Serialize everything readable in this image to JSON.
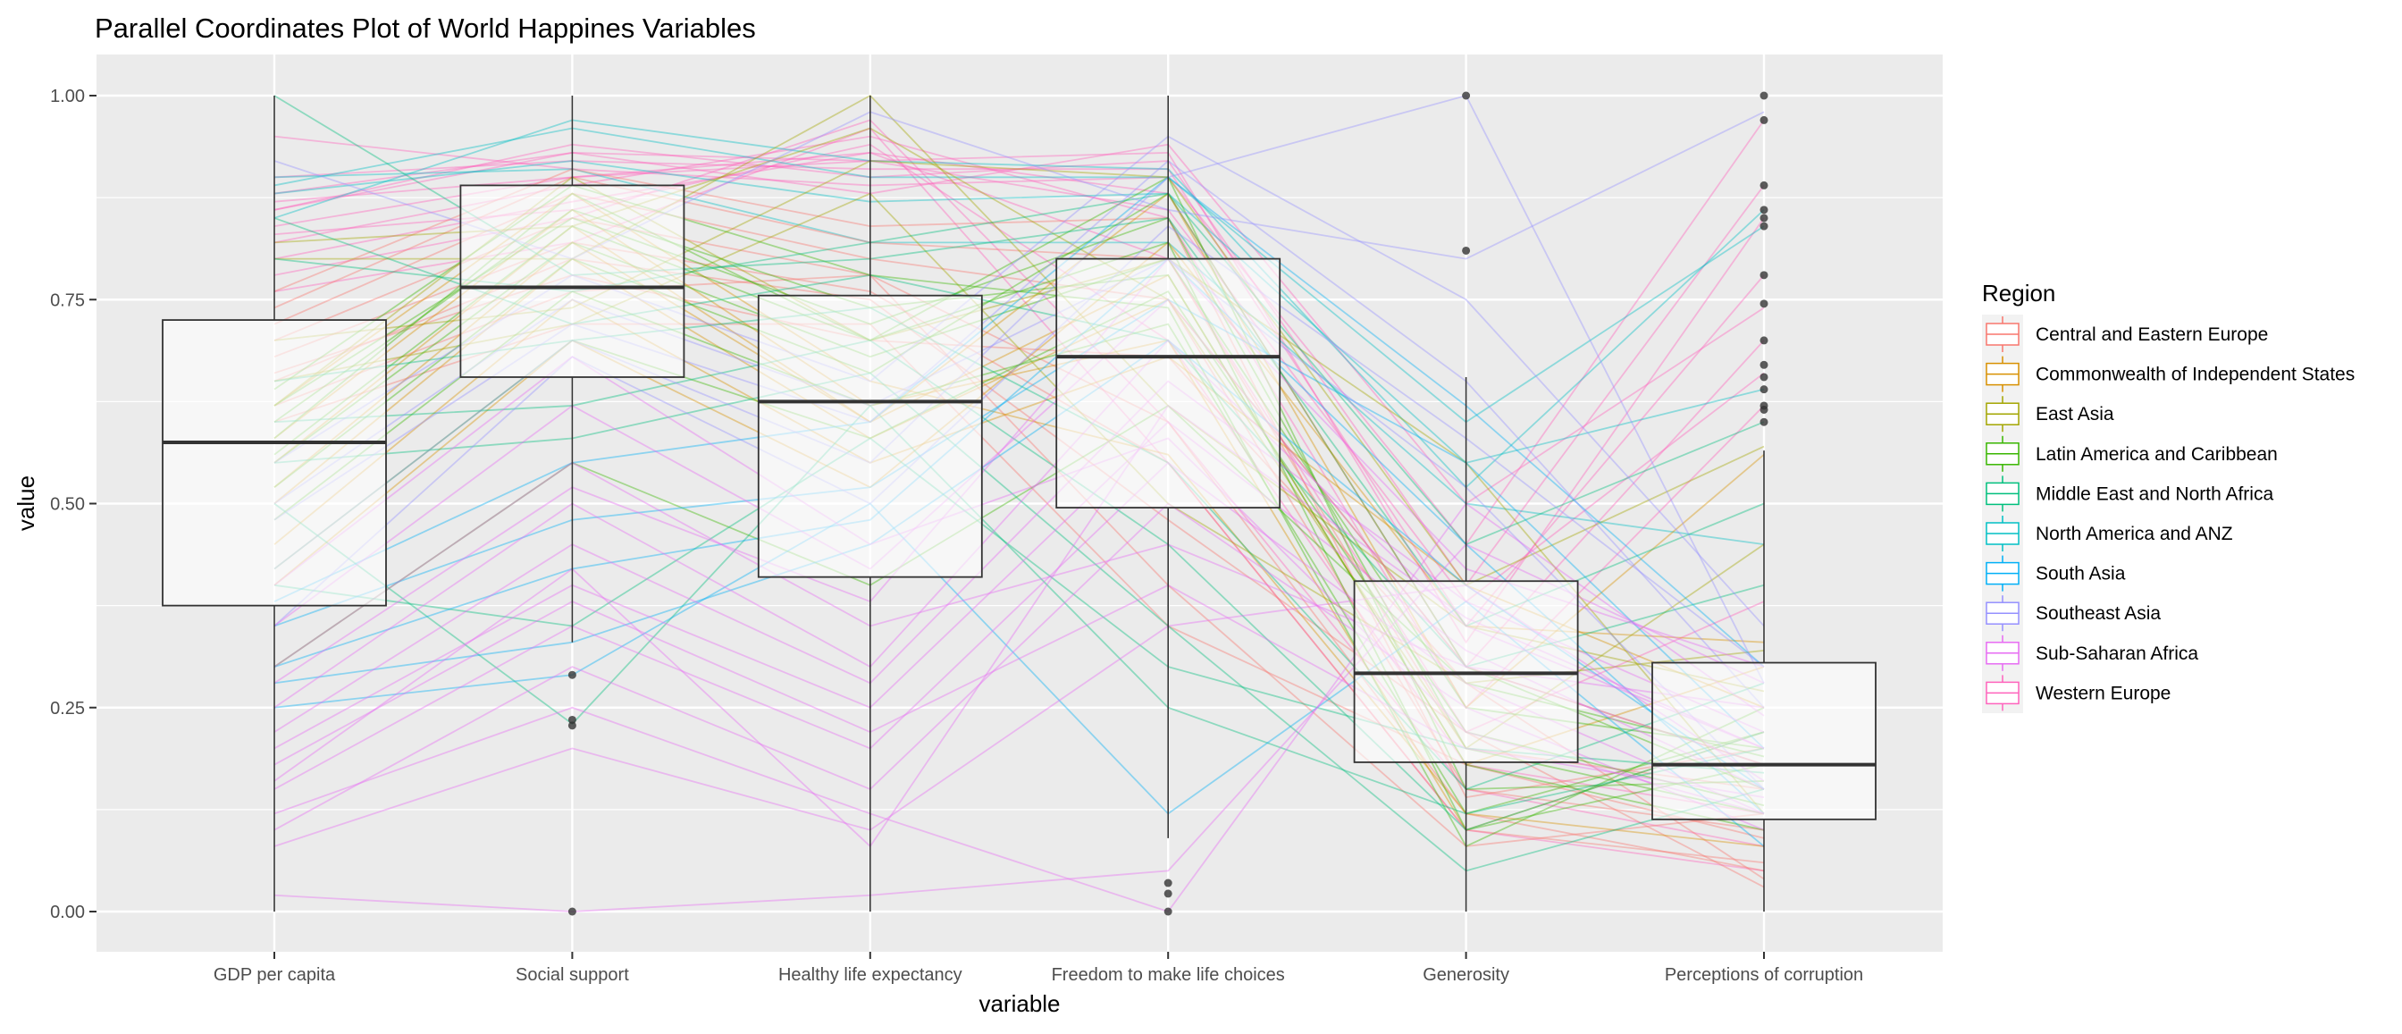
{
  "chart_data": {
    "type": "parallel-coordinates",
    "title": "Parallel Coordinates Plot of World Happines Variables",
    "xlabel": "variable",
    "ylabel": "value",
    "ylim": [
      0,
      1
    ],
    "yticks": [
      "0.00",
      "0.25",
      "0.50",
      "0.75",
      "1.00"
    ],
    "ytick_values": [
      0,
      0.25,
      0.5,
      0.75,
      1
    ],
    "categories": [
      "GDP per capita",
      "Social support",
      "Healthy life expectancy",
      "Freedom to make life choices",
      "Generosity",
      "Perceptions of corruption"
    ],
    "legend": {
      "title": "Region",
      "placement": "right",
      "entries": [
        {
          "label": "Central and Eastern Europe",
          "color": "#F8766D"
        },
        {
          "label": "Commonwealth of Independent States",
          "color": "#D89000"
        },
        {
          "label": "East Asia",
          "color": "#A3A500"
        },
        {
          "label": "Latin America and Caribbean",
          "color": "#39B600"
        },
        {
          "label": "Middle East and North Africa",
          "color": "#00BF7D"
        },
        {
          "label": "North America and ANZ",
          "color": "#00BFC4"
        },
        {
          "label": "South Asia",
          "color": "#00B0F6"
        },
        {
          "label": "Southeast Asia",
          "color": "#9590FF"
        },
        {
          "label": "Sub-Saharan Africa",
          "color": "#E76BF3"
        },
        {
          "label": "Western Europe",
          "color": "#FF62BC"
        }
      ]
    },
    "boxplots": [
      {
        "variable": "GDP per capita",
        "lower": 0,
        "q1": 0.375,
        "median": 0.575,
        "q3": 0.725,
        "upper": 1.0,
        "outliers": []
      },
      {
        "variable": "Social support",
        "lower": 0.33,
        "q1": 0.655,
        "median": 0.765,
        "q3": 0.89,
        "upper": 1.0,
        "outliers": [
          0.29,
          0.235,
          0.228,
          0.0
        ]
      },
      {
        "variable": "Healthy life expectancy",
        "lower": 0,
        "q1": 0.41,
        "median": 0.625,
        "q3": 0.755,
        "upper": 1.0,
        "outliers": []
      },
      {
        "variable": "Freedom to make life choices",
        "lower": 0.09,
        "q1": 0.495,
        "median": 0.68,
        "q3": 0.8,
        "upper": 1.0,
        "outliers": [
          0.035,
          0.022,
          0.0
        ]
      },
      {
        "variable": "Generosity",
        "lower": 0,
        "q1": 0.183,
        "median": 0.292,
        "q3": 0.405,
        "upper": 0.655,
        "outliers": [
          1.0,
          0.81
        ]
      },
      {
        "variable": "Perceptions of corruption",
        "lower": 0,
        "q1": 0.113,
        "median": 0.18,
        "q3": 0.305,
        "upper": 0.565,
        "outliers": [
          1.0,
          0.97,
          0.89,
          0.86,
          0.85,
          0.84,
          0.78,
          0.745,
          0.7,
          0.67,
          0.655,
          0.64,
          0.62,
          0.615,
          0.6
        ]
      }
    ],
    "series": [
      {
        "region": 9,
        "values": [
          0.88,
          0.93,
          0.92,
          0.93,
          0.33,
          0.85
        ]
      },
      {
        "region": 9,
        "values": [
          0.86,
          0.94,
          0.9,
          0.92,
          0.4,
          0.89
        ]
      },
      {
        "region": 9,
        "values": [
          0.9,
          0.92,
          0.91,
          0.91,
          0.35,
          0.78
        ]
      },
      {
        "region": 9,
        "values": [
          0.84,
          0.9,
          0.93,
          0.88,
          0.3,
          0.7
        ]
      },
      {
        "region": 9,
        "values": [
          0.82,
          0.89,
          0.95,
          0.85,
          0.25,
          0.62
        ]
      },
      {
        "region": 9,
        "values": [
          0.95,
          0.91,
          0.89,
          0.9,
          0.45,
          0.97
        ]
      },
      {
        "region": 9,
        "values": [
          0.8,
          0.87,
          0.93,
          0.8,
          0.22,
          0.38
        ]
      },
      {
        "region": 9,
        "values": [
          0.78,
          0.85,
          0.97,
          0.6,
          0.15,
          0.08
        ]
      },
      {
        "region": 9,
        "values": [
          0.83,
          0.86,
          0.94,
          0.7,
          0.18,
          0.12
        ]
      },
      {
        "region": 9,
        "values": [
          0.87,
          0.9,
          0.92,
          0.86,
          0.38,
          0.66
        ]
      },
      {
        "region": 9,
        "values": [
          0.76,
          0.82,
          0.96,
          0.55,
          0.1,
          0.05
        ]
      },
      {
        "region": 9,
        "values": [
          0.86,
          0.93,
          0.88,
          0.94,
          0.5,
          0.74
        ]
      },
      {
        "region": 5,
        "values": [
          0.89,
          0.96,
          0.9,
          0.9,
          0.6,
          0.84
        ]
      },
      {
        "region": 5,
        "values": [
          0.88,
          0.92,
          0.87,
          0.88,
          0.55,
          0.64
        ]
      },
      {
        "region": 5,
        "values": [
          0.85,
          0.97,
          0.92,
          0.91,
          0.52,
          0.86
        ]
      },
      {
        "region": 5,
        "values": [
          0.9,
          0.91,
          0.82,
          0.82,
          0.5,
          0.45
        ]
      },
      {
        "region": 0,
        "values": [
          0.72,
          0.88,
          0.8,
          0.75,
          0.15,
          0.1
        ]
      },
      {
        "region": 0,
        "values": [
          0.7,
          0.85,
          0.78,
          0.6,
          0.12,
          0.05
        ]
      },
      {
        "region": 0,
        "values": [
          0.68,
          0.82,
          0.76,
          0.55,
          0.1,
          0.06
        ]
      },
      {
        "region": 0,
        "values": [
          0.74,
          0.9,
          0.82,
          0.8,
          0.2,
          0.15
        ]
      },
      {
        "region": 0,
        "values": [
          0.65,
          0.8,
          0.75,
          0.48,
          0.22,
          0.03
        ]
      },
      {
        "region": 0,
        "values": [
          0.62,
          0.76,
          0.78,
          0.4,
          0.08,
          0.12
        ]
      },
      {
        "region": 0,
        "values": [
          0.6,
          0.72,
          0.72,
          0.35,
          0.18,
          0.09
        ]
      },
      {
        "region": 0,
        "values": [
          0.76,
          0.91,
          0.84,
          0.85,
          0.14,
          0.2
        ]
      },
      {
        "region": 0,
        "values": [
          0.66,
          0.78,
          0.7,
          0.68,
          0.28,
          0.04
        ]
      },
      {
        "region": 1,
        "values": [
          0.58,
          0.86,
          0.62,
          0.7,
          0.1,
          0.22
        ]
      },
      {
        "region": 1,
        "values": [
          0.55,
          0.84,
          0.6,
          0.78,
          0.18,
          0.3
        ]
      },
      {
        "region": 1,
        "values": [
          0.5,
          0.8,
          0.58,
          0.75,
          0.3,
          0.18
        ]
      },
      {
        "region": 1,
        "values": [
          0.45,
          0.75,
          0.55,
          0.68,
          0.4,
          0.25
        ]
      },
      {
        "region": 1,
        "values": [
          0.62,
          0.88,
          0.65,
          0.56,
          0.12,
          0.08
        ]
      },
      {
        "region": 1,
        "values": [
          0.4,
          0.7,
          0.52,
          0.82,
          0.35,
          0.33
        ]
      },
      {
        "region": 1,
        "values": [
          0.52,
          0.82,
          0.6,
          0.88,
          0.25,
          0.56
        ]
      },
      {
        "region": 2,
        "values": [
          0.8,
          0.8,
          1.0,
          0.62,
          0.35,
          0.27
        ]
      },
      {
        "region": 2,
        "values": [
          0.82,
          0.84,
          0.96,
          0.75,
          0.2,
          0.45
        ]
      },
      {
        "region": 2,
        "values": [
          0.7,
          0.74,
          0.92,
          0.9,
          0.4,
          0.57
        ]
      },
      {
        "region": 2,
        "values": [
          0.62,
          0.9,
          0.7,
          0.8,
          0.55,
          0.12
        ]
      },
      {
        "region": 2,
        "values": [
          0.65,
          0.72,
          0.88,
          0.5,
          0.28,
          0.32
        ]
      },
      {
        "region": 3,
        "values": [
          0.62,
          0.85,
          0.72,
          0.85,
          0.2,
          0.12
        ]
      },
      {
        "region": 3,
        "values": [
          0.58,
          0.88,
          0.7,
          0.9,
          0.15,
          0.16
        ]
      },
      {
        "region": 3,
        "values": [
          0.55,
          0.82,
          0.68,
          0.8,
          0.25,
          0.2
        ]
      },
      {
        "region": 3,
        "values": [
          0.6,
          0.86,
          0.74,
          0.78,
          0.18,
          0.1
        ]
      },
      {
        "region": 3,
        "values": [
          0.52,
          0.8,
          0.66,
          0.88,
          0.3,
          0.15
        ]
      },
      {
        "region": 3,
        "values": [
          0.48,
          0.76,
          0.62,
          0.72,
          0.12,
          0.22
        ]
      },
      {
        "region": 3,
        "values": [
          0.56,
          0.84,
          0.7,
          0.82,
          0.1,
          0.18
        ]
      },
      {
        "region": 3,
        "values": [
          0.42,
          0.7,
          0.58,
          0.76,
          0.22,
          0.13
        ]
      },
      {
        "region": 3,
        "values": [
          0.64,
          0.89,
          0.78,
          0.74,
          0.08,
          0.25
        ]
      },
      {
        "region": 3,
        "values": [
          0.3,
          0.55,
          0.4,
          0.62,
          0.28,
          0.19
        ]
      },
      {
        "region": 4,
        "values": [
          1.0,
          0.78,
          0.8,
          0.85,
          0.35,
          0.5
        ]
      },
      {
        "region": 4,
        "values": [
          0.85,
          0.72,
          0.78,
          0.7,
          0.3,
          0.4
        ]
      },
      {
        "region": 4,
        "values": [
          0.8,
          0.76,
          0.82,
          0.88,
          0.45,
          0.6
        ]
      },
      {
        "region": 4,
        "values": [
          0.6,
          0.62,
          0.7,
          0.45,
          0.1,
          0.22
        ]
      },
      {
        "region": 4,
        "values": [
          0.55,
          0.58,
          0.66,
          0.35,
          0.05,
          0.15
        ]
      },
      {
        "region": 4,
        "values": [
          0.65,
          0.7,
          0.74,
          0.55,
          0.15,
          0.28
        ]
      },
      {
        "region": 4,
        "values": [
          0.4,
          0.35,
          0.58,
          0.3,
          0.2,
          0.17
        ]
      },
      {
        "region": 4,
        "values": [
          0.5,
          0.23,
          0.62,
          0.25,
          0.12,
          0.2
        ]
      },
      {
        "region": 6,
        "values": [
          0.35,
          0.48,
          0.52,
          0.75,
          0.55,
          0.2
        ]
      },
      {
        "region": 6,
        "values": [
          0.3,
          0.42,
          0.48,
          0.8,
          0.45,
          0.12
        ]
      },
      {
        "region": 6,
        "values": [
          0.28,
          0.33,
          0.45,
          0.7,
          0.4,
          0.15
        ]
      },
      {
        "region": 6,
        "values": [
          0.25,
          0.29,
          0.5,
          0.12,
          0.38,
          0.08
        ]
      },
      {
        "region": 6,
        "values": [
          0.38,
          0.55,
          0.6,
          0.9,
          0.62,
          0.3
        ]
      },
      {
        "region": 7,
        "values": [
          0.92,
          0.8,
          0.98,
          0.86,
          0.8,
          0.98
        ]
      },
      {
        "region": 7,
        "values": [
          0.55,
          0.78,
          0.65,
          0.95,
          0.75,
          0.35
        ]
      },
      {
        "region": 7,
        "values": [
          0.48,
          0.72,
          0.6,
          0.92,
          0.65,
          0.25
        ]
      },
      {
        "region": 7,
        "values": [
          0.42,
          0.7,
          0.55,
          0.9,
          1.0,
          0.28
        ]
      },
      {
        "region": 7,
        "values": [
          0.5,
          0.75,
          0.62,
          0.8,
          0.52,
          0.15
        ]
      },
      {
        "region": 7,
        "values": [
          0.35,
          0.68,
          0.5,
          0.84,
          0.58,
          0.3
        ]
      },
      {
        "region": 8,
        "values": [
          0.2,
          0.4,
          0.25,
          0.6,
          0.32,
          0.15
        ]
      },
      {
        "region": 8,
        "values": [
          0.15,
          0.35,
          0.2,
          0.55,
          0.28,
          0.12
        ]
      },
      {
        "region": 8,
        "values": [
          0.25,
          0.5,
          0.3,
          0.7,
          0.35,
          0.2
        ]
      },
      {
        "region": 8,
        "values": [
          0.1,
          0.3,
          0.15,
          0.5,
          0.25,
          0.1
        ]
      },
      {
        "region": 8,
        "values": [
          0.3,
          0.55,
          0.35,
          0.45,
          0.3,
          0.18
        ]
      },
      {
        "region": 8,
        "values": [
          0.22,
          0.45,
          0.28,
          0.65,
          0.38,
          0.22
        ]
      },
      {
        "region": 8,
        "values": [
          0.18,
          0.38,
          0.22,
          0.4,
          0.2,
          0.14
        ]
      },
      {
        "region": 8,
        "values": [
          0.35,
          0.62,
          0.42,
          0.75,
          0.3,
          0.25
        ]
      },
      {
        "region": 8,
        "values": [
          0.08,
          0.2,
          0.1,
          0.35,
          0.4,
          0.16
        ]
      },
      {
        "region": 8,
        "values": [
          0.28,
          0.52,
          0.38,
          0.8,
          0.42,
          0.3
        ]
      },
      {
        "region": 8,
        "values": [
          0.02,
          0.0,
          0.02,
          0.05,
          0.45,
          0.28
        ]
      },
      {
        "region": 8,
        "values": [
          0.12,
          0.25,
          0.12,
          0.0,
          0.5,
          0.24
        ]
      },
      {
        "region": 8,
        "values": [
          0.4,
          0.68,
          0.45,
          0.58,
          0.22,
          0.12
        ]
      },
      {
        "region": 8,
        "values": [
          0.16,
          0.42,
          0.08,
          0.62,
          0.36,
          0.2
        ]
      }
    ]
  }
}
